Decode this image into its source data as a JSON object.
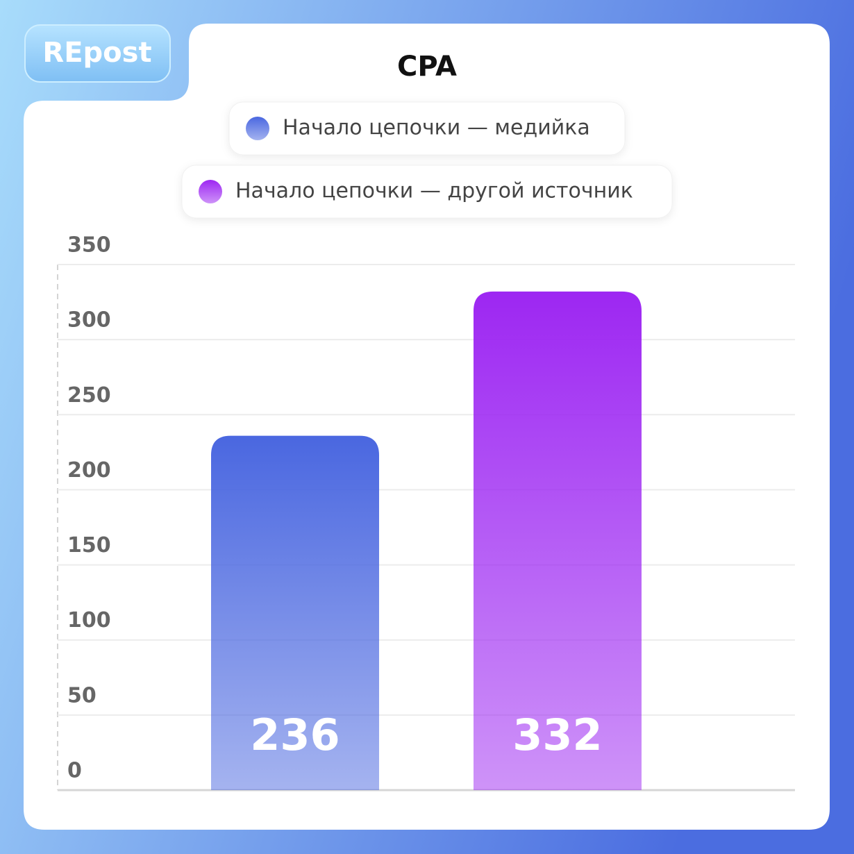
{
  "brand": "REpost",
  "chart_data": {
    "type": "bar",
    "title": "CPA",
    "categories": [
      null
    ],
    "series": [
      {
        "name": "Начало цепочки — медийка",
        "color": "#4a67e0",
        "values": [
          236
        ]
      },
      {
        "name": "Начало цепочки — другой источник",
        "color": "#9d27f2",
        "values": [
          332
        ]
      }
    ],
    "ylim": [
      0,
      350
    ],
    "yticks": [
      0,
      50,
      100,
      150,
      200,
      250,
      300,
      350
    ],
    "grid": true
  }
}
